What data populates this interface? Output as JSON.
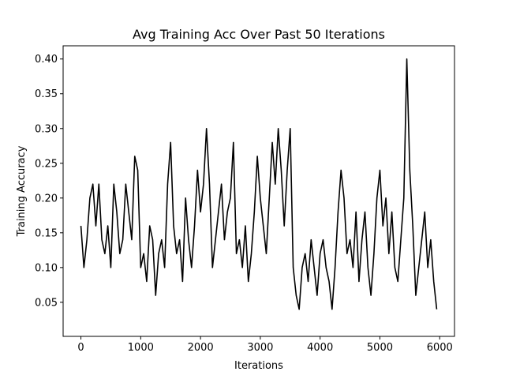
{
  "chart_data": {
    "type": "line",
    "title": "Avg Training Acc Over Past 50 Iterations",
    "x_label": "Iterations",
    "y_label": "Training Accuracy",
    "x": [
      0,
      50,
      100,
      150,
      200,
      250,
      300,
      350,
      400,
      450,
      500,
      550,
      600,
      650,
      700,
      750,
      800,
      850,
      900,
      950,
      1000,
      1050,
      1100,
      1150,
      1200,
      1250,
      1300,
      1350,
      1400,
      1450,
      1500,
      1550,
      1600,
      1650,
      1700,
      1750,
      1800,
      1850,
      1900,
      1950,
      2000,
      2050,
      2100,
      2150,
      2200,
      2250,
      2300,
      2350,
      2400,
      2450,
      2500,
      2550,
      2600,
      2650,
      2700,
      2750,
      2800,
      2850,
      2900,
      2950,
      3000,
      3050,
      3100,
      3150,
      3200,
      3250,
      3300,
      3350,
      3400,
      3450,
      3500,
      3550,
      3600,
      3650,
      3700,
      3750,
      3800,
      3850,
      3900,
      3950,
      4000,
      4050,
      4100,
      4150,
      4200,
      4250,
      4300,
      4350,
      4400,
      4450,
      4500,
      4550,
      4600,
      4650,
      4700,
      4750,
      4800,
      4850,
      4900,
      4950,
      5000,
      5050,
      5100,
      5150,
      5200,
      5250,
      5300,
      5350,
      5400,
      5450,
      5500,
      5550,
      5600,
      5650,
      5700,
      5750,
      5800,
      5850,
      5900,
      5950
    ],
    "series": [
      {
        "name": "Training Accuracy",
        "color": "#000000",
        "values": [
          0.16,
          0.1,
          0.14,
          0.2,
          0.22,
          0.16,
          0.22,
          0.14,
          0.12,
          0.16,
          0.1,
          0.22,
          0.18,
          0.12,
          0.14,
          0.22,
          0.18,
          0.14,
          0.26,
          0.24,
          0.1,
          0.12,
          0.08,
          0.16,
          0.14,
          0.06,
          0.12,
          0.14,
          0.1,
          0.22,
          0.28,
          0.16,
          0.12,
          0.14,
          0.08,
          0.2,
          0.14,
          0.1,
          0.16,
          0.24,
          0.18,
          0.22,
          0.3,
          0.22,
          0.1,
          0.14,
          0.18,
          0.22,
          0.14,
          0.18,
          0.2,
          0.28,
          0.12,
          0.14,
          0.1,
          0.16,
          0.08,
          0.12,
          0.18,
          0.26,
          0.2,
          0.16,
          0.12,
          0.2,
          0.28,
          0.22,
          0.3,
          0.24,
          0.16,
          0.24,
          0.3,
          0.1,
          0.06,
          0.04,
          0.1,
          0.12,
          0.08,
          0.14,
          0.1,
          0.06,
          0.12,
          0.14,
          0.1,
          0.08,
          0.04,
          0.1,
          0.18,
          0.24,
          0.2,
          0.12,
          0.14,
          0.1,
          0.18,
          0.08,
          0.14,
          0.18,
          0.1,
          0.06,
          0.12,
          0.2,
          0.24,
          0.16,
          0.2,
          0.12,
          0.18,
          0.1,
          0.08,
          0.14,
          0.2,
          0.4,
          0.24,
          0.16,
          0.06,
          0.1,
          0.14,
          0.18,
          0.1,
          0.14,
          0.08,
          0.04
        ]
      }
    ],
    "xlim": [
      -297.5,
      6247.5
    ],
    "xticks": [
      0,
      1000,
      2000,
      3000,
      4000,
      5000,
      6000
    ],
    "ylim": [
      0.001,
      0.419
    ],
    "yticks": [
      {
        "value": 0.05,
        "label": "0.05"
      },
      {
        "value": 0.1,
        "label": "0.10"
      },
      {
        "value": 0.15,
        "label": "0.15"
      },
      {
        "value": 0.2,
        "label": "0.20"
      },
      {
        "value": 0.25,
        "label": "0.25"
      },
      {
        "value": 0.3,
        "label": "0.30"
      },
      {
        "value": 0.35,
        "label": "0.35"
      },
      {
        "value": 0.4,
        "label": "0.40"
      }
    ],
    "grid": false
  }
}
